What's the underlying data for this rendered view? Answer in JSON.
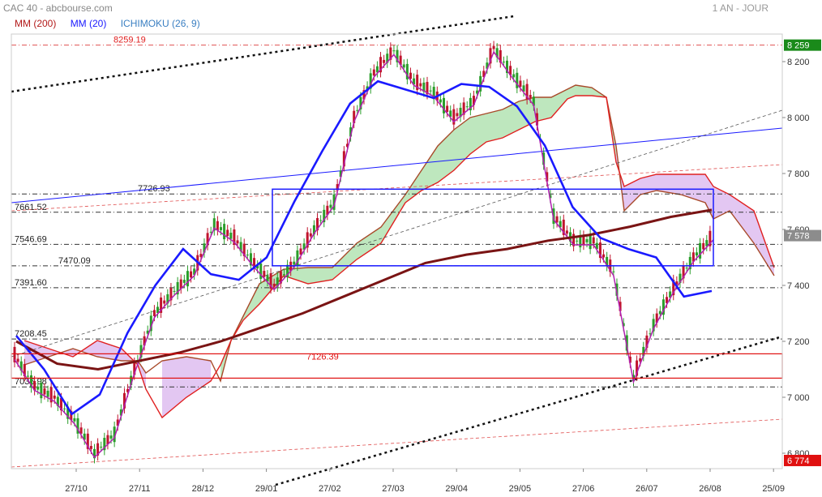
{
  "header": {
    "title": "CAC 40 - abcbourse.com",
    "period": "1 AN - JOUR",
    "indicators": [
      {
        "label": "MM (200)",
        "color": "#b31b1b"
      },
      {
        "label": "MM (20)",
        "color": "#1a1aff"
      },
      {
        "label": "ICHIMOKU (26, 9)",
        "color": "#3a7fc2"
      }
    ]
  },
  "chart_data": {
    "type": "candlestick",
    "title": "CAC 40",
    "period": "1 AN - JOUR",
    "ylim": [
      6774,
      8290
    ],
    "y_ticks": [
      6800,
      7000,
      7200,
      7400,
      7600,
      7800,
      8000,
      8200
    ],
    "y_tick_labels": [
      "6 800",
      "7 000",
      "7 200",
      "7 400",
      "7 600",
      "7 800",
      "8 000",
      "8 200"
    ],
    "x_tick_labels": [
      "27/10",
      "27/11",
      "28/12",
      "29/01",
      "27/02",
      "27/03",
      "29/04",
      "29/05",
      "27/06",
      "26/07",
      "26/08",
      "25/09"
    ],
    "price_badges": [
      {
        "value": 8259,
        "label": "8 259",
        "color": "#1a8a1a"
      },
      {
        "value": 7578,
        "label": "7 578",
        "color": "#8c8c8c"
      },
      {
        "value": 6774,
        "label": "6 774",
        "color": "#e01010"
      }
    ],
    "levels": [
      {
        "value": 8259.19,
        "label": "8259.19",
        "style": "red-dashdot"
      },
      {
        "value": 7726.93,
        "label": "7726.93",
        "style": "dashdot"
      },
      {
        "value": 7661.52,
        "label": "7661.52",
        "style": "dashdot"
      },
      {
        "value": 7546.69,
        "label": "7546.69",
        "style": "dashdot"
      },
      {
        "value": 7470.09,
        "label": "7470.09",
        "style": "dashdot"
      },
      {
        "value": 7391.6,
        "label": "7391.60",
        "style": "dashdot"
      },
      {
        "value": 7208.45,
        "label": "7208.45",
        "style": "dashdot"
      },
      {
        "value": 7036.98,
        "label": "7036.98",
        "style": "dashdot"
      }
    ],
    "annotations": [
      {
        "type": "box",
        "label": "7126.39",
        "y_from": 7036.98,
        "y_to": 7126.39,
        "color": "#e01010"
      },
      {
        "type": "box",
        "y_from": 7470.09,
        "y_to": 7744,
        "color": "#1a1aff"
      }
    ],
    "price_points": [
      7150,
      7040,
      7000,
      6920,
      6800,
      6870,
      7100,
      7300,
      7380,
      7450,
      7620,
      7570,
      7480,
      7400,
      7480,
      7600,
      7700,
      8000,
      8160,
      8240,
      8130,
      8090,
      8000,
      8060,
      8250,
      8150,
      8060,
      7650,
      7560,
      7560,
      7450,
      7070,
      7260,
      7390,
      7500,
      7578
    ],
    "ma200": [
      7200,
      7120,
      7100,
      7130,
      7160,
      7200,
      7250,
      7300,
      7360,
      7420,
      7480,
      7510,
      7530,
      7560,
      7580,
      7610,
      7645,
      7670
    ],
    "ma20": [
      7220,
      7100,
      6940,
      7010,
      7230,
      7400,
      7530,
      7440,
      7420,
      7500,
      7700,
      7880,
      8050,
      8130,
      8100,
      8070,
      8120,
      8110,
      8040,
      7900,
      7680,
      7570,
      7530,
      7500,
      7360,
      7380
    ]
  }
}
